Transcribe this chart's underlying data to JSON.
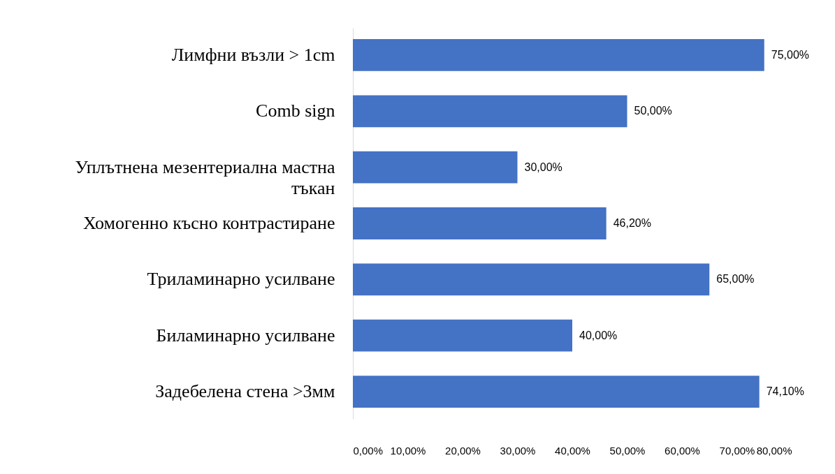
{
  "chart_data": {
    "type": "bar",
    "orientation": "horizontal",
    "categories": [
      "Лимфни възли > 1cm",
      "Comb sign",
      "Уплътнена мезентериална мастна тъкан",
      "Хомогенно късно контрастиране",
      "Триламинарно усилване",
      "Биламинарно усилване",
      "Задебелена стена  >3мм"
    ],
    "values": [
      75,
      50,
      30,
      46.2,
      65,
      40,
      74.1
    ],
    "value_labels": [
      "75,00%",
      "50,00%",
      "30,00%",
      "46,20%",
      "65,00%",
      "40,00%",
      "74,10%"
    ],
    "color": "#4472c4",
    "xlim": [
      0,
      80
    ],
    "xticks": [
      {
        "value": 0,
        "label": "0,00%"
      },
      {
        "value": 10,
        "label": "10,00%"
      },
      {
        "value": 20,
        "label": "20,00%"
      },
      {
        "value": 30,
        "label": "30,00%"
      },
      {
        "value": 40,
        "label": "40,00%"
      },
      {
        "value": 50,
        "label": "50,00%"
      },
      {
        "value": 60,
        "label": "60,00%"
      },
      {
        "value": 70,
        "label": "70,00%"
      },
      {
        "value": 80,
        "label": "80,00%"
      }
    ],
    "grid": false
  }
}
